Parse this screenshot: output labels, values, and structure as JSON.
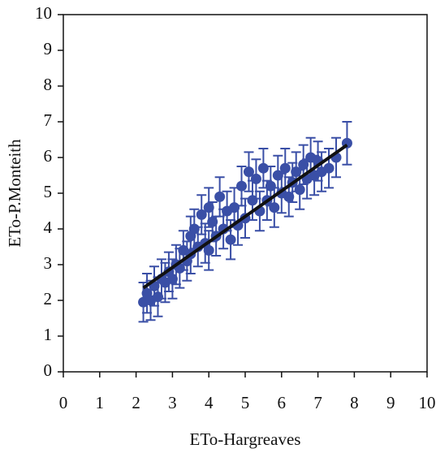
{
  "chart_data": {
    "type": "scatter",
    "xlabel": "ETo-Hargreaves",
    "ylabel": "ETo-P.Monteith",
    "xlim": [
      0,
      10
    ],
    "ylim": [
      0,
      10
    ],
    "xticks": [
      0,
      1,
      2,
      3,
      4,
      5,
      6,
      7,
      8,
      9,
      10
    ],
    "yticks": [
      0,
      1,
      2,
      3,
      4,
      5,
      6,
      7,
      8,
      9,
      10
    ],
    "series": [
      {
        "color": "#3a4fa6",
        "x": [
          2.2,
          2.3,
          2.4,
          2.5,
          2.6,
          2.7,
          2.8,
          2.9,
          3.0,
          3.1,
          3.2,
          3.3,
          3.4,
          3.5,
          3.5,
          3.6,
          3.7,
          3.8,
          3.9,
          4.0,
          4.0,
          4.1,
          4.2,
          4.3,
          4.4,
          4.5,
          4.6,
          4.7,
          4.8,
          4.9,
          5.0,
          5.1,
          5.2,
          5.3,
          5.4,
          5.5,
          5.6,
          5.7,
          5.8,
          5.9,
          6.0,
          6.1,
          6.2,
          6.3,
          6.4,
          6.5,
          6.6,
          6.7,
          6.8,
          6.9,
          7.0,
          7.1,
          7.3,
          7.5,
          7.8
        ],
        "values": [
          1.95,
          2.2,
          2.0,
          2.4,
          2.1,
          2.6,
          2.5,
          2.8,
          2.6,
          3.0,
          2.9,
          3.4,
          3.1,
          3.8,
          3.3,
          4.0,
          3.5,
          4.4,
          3.6,
          4.6,
          3.4,
          4.2,
          3.8,
          4.9,
          4.0,
          4.5,
          3.7,
          4.6,
          4.1,
          5.2,
          4.3,
          5.6,
          4.8,
          5.4,
          4.5,
          5.7,
          4.8,
          5.2,
          4.6,
          5.5,
          5.0,
          5.7,
          4.9,
          5.3,
          5.6,
          5.1,
          5.8,
          5.4,
          6.0,
          5.5,
          5.9,
          5.6,
          5.7,
          6.0,
          6.4
        ],
        "errors": [
          0.55,
          0.55,
          0.55,
          0.55,
          0.55,
          0.55,
          0.55,
          0.55,
          0.55,
          0.55,
          0.55,
          0.55,
          0.55,
          0.55,
          0.55,
          0.55,
          0.55,
          0.55,
          0.55,
          0.55,
          0.55,
          0.55,
          0.55,
          0.55,
          0.55,
          0.55,
          0.55,
          0.55,
          0.55,
          0.55,
          0.55,
          0.55,
          0.55,
          0.55,
          0.55,
          0.55,
          0.55,
          0.55,
          0.55,
          0.55,
          0.55,
          0.55,
          0.55,
          0.55,
          0.55,
          0.55,
          0.55,
          0.55,
          0.55,
          0.55,
          0.55,
          0.55,
          0.55,
          0.55,
          0.6
        ]
      }
    ],
    "trend_line": {
      "color": "#111111",
      "x": [
        2.2,
        7.8
      ],
      "y": [
        2.35,
        6.35
      ]
    }
  }
}
